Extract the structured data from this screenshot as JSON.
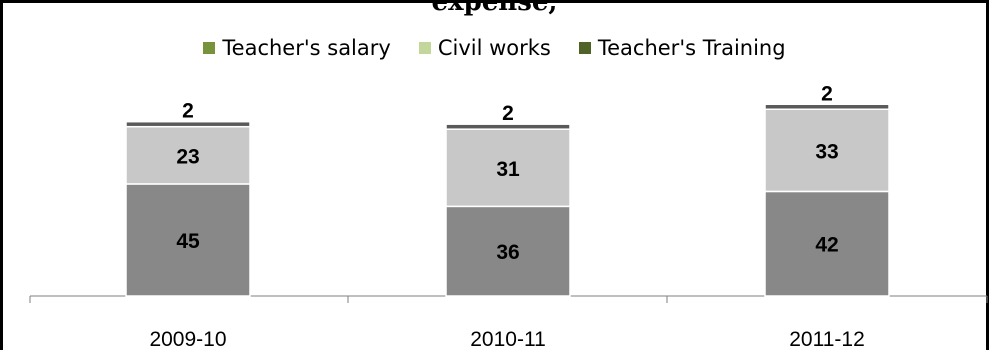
{
  "title_fragment": "expense,",
  "chart_data": {
    "type": "bar",
    "stacked": true,
    "categories": [
      "2009-10",
      "2010-11",
      "2011-12"
    ],
    "series": [
      {
        "name": "Teacher's salary",
        "values": [
          45,
          36,
          42
        ],
        "color": "#888888"
      },
      {
        "name": "Civil works",
        "values": [
          23,
          31,
          33
        ],
        "color": "#c8c8c8"
      },
      {
        "name": "Teacher's Training",
        "values": [
          2,
          2,
          2
        ],
        "color": "#5a5a5a"
      }
    ],
    "legend_colors": [
      "#77933c",
      "#c3d69b",
      "#4f6228"
    ],
    "legend_position": "top",
    "ylim": [
      0,
      80
    ],
    "grid": false
  }
}
